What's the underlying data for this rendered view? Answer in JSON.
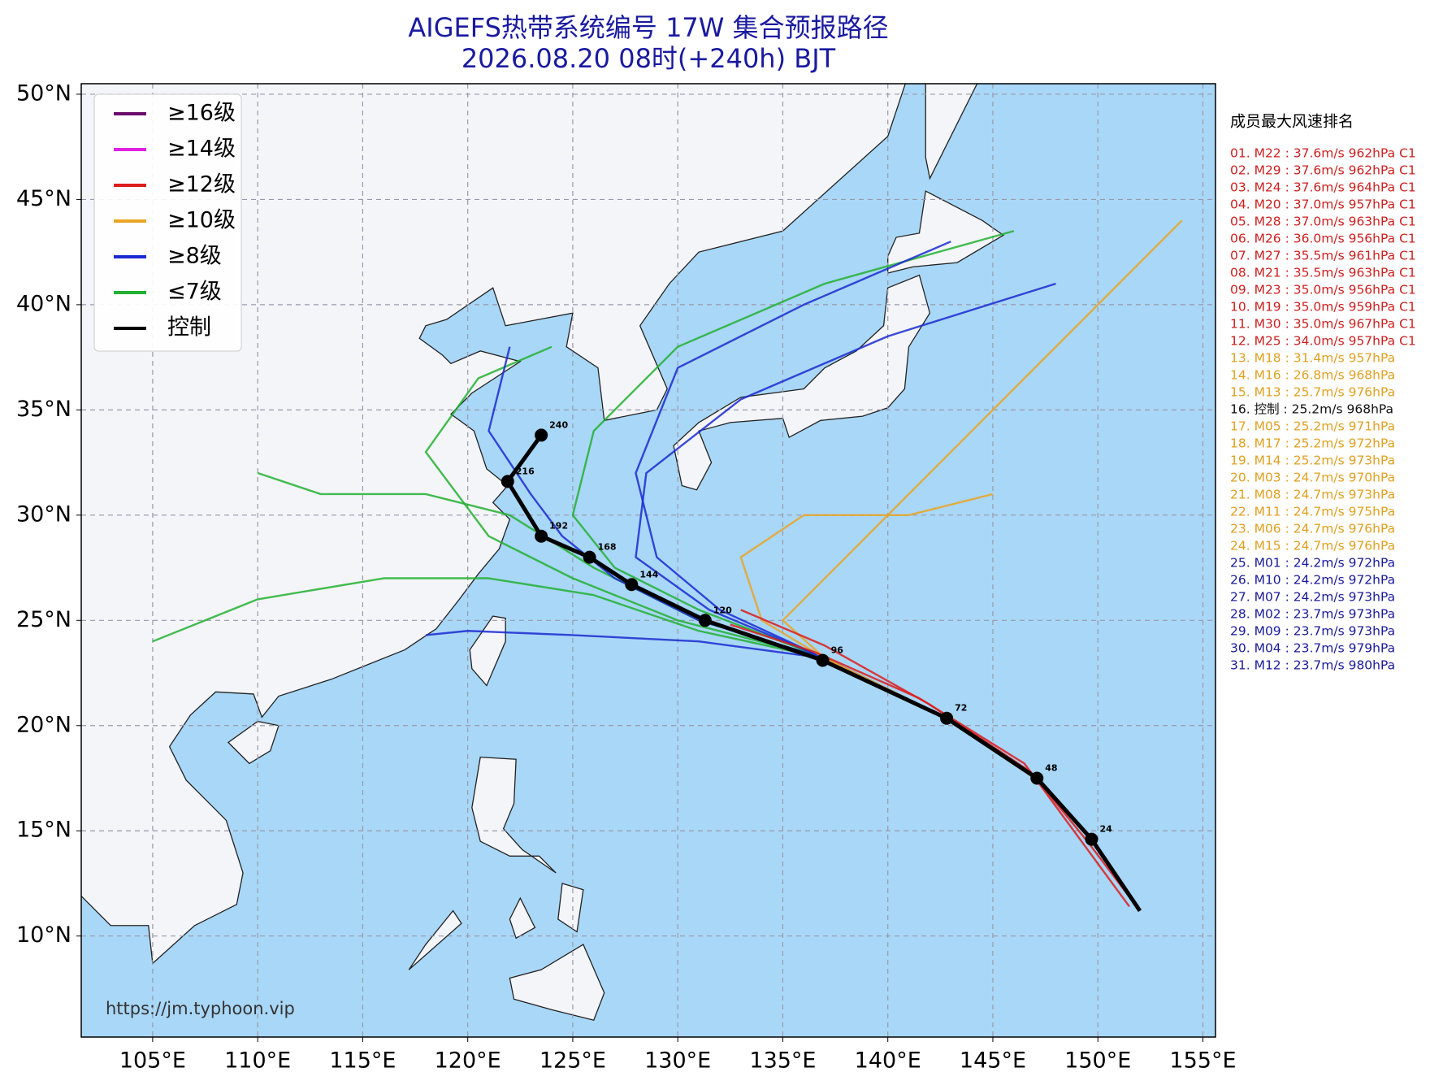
{
  "chart_data": {
    "type": "track-map",
    "title": "AIGEFS热带系统编号 17W 集合预报路径",
    "subtitle": "2026.08.20 08时(+240h) BJT",
    "xlim": [
      101.6,
      155.6
    ],
    "ylim": [
      5.2,
      50.5
    ],
    "xticks": [
      {
        "value": 105,
        "label": "105°E"
      },
      {
        "value": 110,
        "label": "110°E"
      },
      {
        "value": 115,
        "label": "115°E"
      },
      {
        "value": 120,
        "label": "120°E"
      },
      {
        "value": 125,
        "label": "125°E"
      },
      {
        "value": 130,
        "label": "130°E"
      },
      {
        "value": 135,
        "label": "135°E"
      },
      {
        "value": 140,
        "label": "140°E"
      },
      {
        "value": 145,
        "label": "145°E"
      },
      {
        "value": 150,
        "label": "150°E"
      },
      {
        "value": 155,
        "label": "155°E"
      }
    ],
    "yticks": [
      {
        "value": 10,
        "label": "10°N"
      },
      {
        "value": 15,
        "label": "15°N"
      },
      {
        "value": 20,
        "label": "20°N"
      },
      {
        "value": 25,
        "label": "25°N"
      },
      {
        "value": 30,
        "label": "30°N"
      },
      {
        "value": 35,
        "label": "35°N"
      },
      {
        "value": 40,
        "label": "40°N"
      },
      {
        "value": 45,
        "label": "45°N"
      },
      {
        "value": 50,
        "label": "50°N"
      }
    ],
    "grid": true,
    "legend": {
      "corner": "upper left",
      "entries": [
        {
          "name": "≥16级",
          "color": "#6a0a6a"
        },
        {
          "name": "≥14级",
          "color": "#e020e0"
        },
        {
          "name": "≥12级",
          "color": "#dd1c1c"
        },
        {
          "name": "≥10级",
          "color": "#eaa524"
        },
        {
          "name": "≥8级",
          "color": "#1a2ad0"
        },
        {
          "name": "≤7级",
          "color": "#22b030"
        },
        {
          "name": "控制",
          "color": "#000000"
        }
      ]
    },
    "control": {
      "color": "#000000",
      "lon": [
        152,
        149.7,
        147.1,
        142.8,
        136.9,
        131.3,
        127.8,
        125.8,
        123.5,
        121.9,
        123.5
      ],
      "lat": [
        11.2,
        14.6,
        17.5,
        20.35,
        23.1,
        25.0,
        26.7,
        28.0,
        29.0,
        31.6,
        33.8
      ],
      "hours": [
        null,
        24,
        48,
        72,
        96,
        120,
        144,
        168,
        192,
        216,
        240
      ]
    },
    "members": [
      {
        "color": "#22b030",
        "lon": [
          152,
          149.7,
          147,
          142.5,
          137,
          131,
          127,
          125,
          126,
          130,
          137,
          146
        ],
        "lat": [
          11.2,
          14.6,
          17.5,
          20.5,
          23.2,
          25.5,
          27.5,
          30,
          34,
          38,
          41,
          43.5
        ]
      },
      {
        "color": "#22b030",
        "lon": [
          152,
          149.7,
          147,
          142.5,
          137,
          131,
          126,
          121,
          116,
          110,
          105
        ],
        "lat": [
          11.2,
          14.6,
          17.5,
          20.5,
          23.2,
          24.5,
          26.2,
          27,
          27,
          26,
          24
        ]
      },
      {
        "color": "#22b030",
        "lon": [
          152,
          149.7,
          147,
          142.5,
          137,
          131,
          126,
          122,
          118,
          113,
          110
        ],
        "lat": [
          11.2,
          14.6,
          17.5,
          20.5,
          23.2,
          25,
          27.5,
          30,
          31,
          31,
          32
        ]
      },
      {
        "color": "#22b030",
        "lon": [
          152,
          149.7,
          147,
          142.5,
          137,
          130,
          125,
          121,
          118,
          120.5,
          124
        ],
        "lat": [
          11.2,
          14.6,
          17.5,
          20.5,
          23.2,
          25,
          27,
          29,
          33,
          36.5,
          38
        ]
      },
      {
        "color": "#1a2ad0",
        "lon": [
          152,
          149.7,
          147,
          142.5,
          137,
          131.5,
          128,
          128.5,
          133,
          140,
          148
        ],
        "lat": [
          11.2,
          14.6,
          17.5,
          20.5,
          23.2,
          25.5,
          28,
          32,
          35.5,
          38.5,
          41
        ]
      },
      {
        "color": "#1a2ad0",
        "lon": [
          152,
          149.7,
          147,
          142.5,
          137,
          131,
          125,
          120,
          118
        ],
        "lat": [
          11.2,
          14.6,
          17.5,
          20.5,
          23.2,
          24,
          24.3,
          24.5,
          24.3
        ]
      },
      {
        "color": "#1a2ad0",
        "lon": [
          152,
          149.7,
          147,
          142.5,
          137,
          132,
          129,
          128,
          130,
          136,
          143
        ],
        "lat": [
          11.2,
          14.6,
          17.5,
          20.5,
          23.2,
          25.5,
          28,
          32,
          37,
          40,
          43
        ]
      },
      {
        "color": "#1a2ad0",
        "lon": [
          152,
          149.7,
          147,
          142.5,
          137,
          131,
          127,
          124.5,
          123,
          121,
          122
        ],
        "lat": [
          11.2,
          14.6,
          17.5,
          20.5,
          23.2,
          25,
          27,
          29,
          31,
          34,
          38
        ]
      },
      {
        "color": "#eaa524",
        "lon": [
          152,
          149.7,
          147,
          142.5,
          137,
          134,
          133,
          136,
          141,
          145
        ],
        "lat": [
          11.2,
          14.6,
          17.5,
          20.5,
          23.2,
          25,
          28,
          30,
          30,
          31
        ]
      },
      {
        "color": "#eaa524",
        "lon": [
          152,
          149.7,
          147,
          142.5,
          137,
          135,
          140,
          145,
          150,
          154
        ],
        "lat": [
          11.2,
          14.6,
          17.5,
          20.5,
          23.2,
          25,
          30,
          35,
          40,
          44
        ]
      },
      {
        "color": "#dd1c1c",
        "lon": [
          152,
          149.5,
          146.8,
          142,
          137,
          133
        ],
        "lat": [
          11.2,
          14.5,
          17.8,
          21,
          23.8,
          25.5
        ]
      },
      {
        "color": "#dd1c1c",
        "lon": [
          151.5,
          149,
          146.5,
          141.5,
          136.5,
          132.5
        ],
        "lat": [
          11.4,
          14.8,
          18.2,
          21.3,
          23.5,
          24.8
        ]
      }
    ],
    "ranking": {
      "title": "成员最大风速排名",
      "entries": [
        {
          "text": "01. M22 : 37.6m/s 962hPa C1",
          "color": "#cc2020"
        },
        {
          "text": "02. M29 : 37.6m/s 962hPa C1",
          "color": "#cc2020"
        },
        {
          "text": "03. M24 : 37.6m/s 964hPa C1",
          "color": "#cc2020"
        },
        {
          "text": "04. M20 : 37.0m/s 957hPa C1",
          "color": "#cc2020"
        },
        {
          "text": "05. M28 : 37.0m/s 963hPa C1",
          "color": "#cc2020"
        },
        {
          "text": "06. M26 : 36.0m/s 956hPa C1",
          "color": "#cc2020"
        },
        {
          "text": "07. M27 : 35.5m/s 961hPa C1",
          "color": "#cc2020"
        },
        {
          "text": "08. M21 : 35.5m/s 963hPa C1",
          "color": "#cc2020"
        },
        {
          "text": "09. M23 : 35.0m/s 956hPa C1",
          "color": "#cc2020"
        },
        {
          "text": "10. M19 : 35.0m/s 959hPa C1",
          "color": "#cc2020"
        },
        {
          "text": "11. M30 : 35.0m/s 967hPa C1",
          "color": "#cc2020"
        },
        {
          "text": "12. M25 : 34.0m/s 957hPa C1",
          "color": "#cc2020"
        },
        {
          "text": "13. M18 : 31.4m/s 957hPa",
          "color": "#e0a020"
        },
        {
          "text": "14. M16 : 26.8m/s 968hPa",
          "color": "#e0a020"
        },
        {
          "text": "15. M13 : 25.7m/s 976hPa",
          "color": "#e0a020"
        },
        {
          "text": "16. 控制 : 25.2m/s 968hPa",
          "color": "#111111"
        },
        {
          "text": "17. M05 : 25.2m/s 971hPa",
          "color": "#e0a020"
        },
        {
          "text": "18. M17 : 25.2m/s 972hPa",
          "color": "#e0a020"
        },
        {
          "text": "19. M14 : 25.2m/s 973hPa",
          "color": "#e0a020"
        },
        {
          "text": "20. M03 : 24.7m/s 970hPa",
          "color": "#e0a020"
        },
        {
          "text": "21. M08 : 24.7m/s 973hPa",
          "color": "#e0a020"
        },
        {
          "text": "22. M11 : 24.7m/s 975hPa",
          "color": "#e0a020"
        },
        {
          "text": "23. M06 : 24.7m/s 976hPa",
          "color": "#e0a020"
        },
        {
          "text": "24. M15 : 24.7m/s 976hPa",
          "color": "#e0a020"
        },
        {
          "text": "25. M01 : 24.2m/s 972hPa",
          "color": "#1a1a99"
        },
        {
          "text": "26. M10 : 24.2m/s 972hPa",
          "color": "#1a1a99"
        },
        {
          "text": "27. M07 : 24.2m/s 973hPa",
          "color": "#1a1a99"
        },
        {
          "text": "28. M02 : 23.7m/s 973hPa",
          "color": "#1a1a99"
        },
        {
          "text": "29. M09 : 23.7m/s 973hPa",
          "color": "#1a1a99"
        },
        {
          "text": "30. M04 : 23.7m/s 979hPa",
          "color": "#1a1a99"
        },
        {
          "text": "31. M12 : 23.7m/s 980hPa",
          "color": "#1a1a99"
        }
      ]
    },
    "source": "https://jm.typhoon.vip"
  }
}
